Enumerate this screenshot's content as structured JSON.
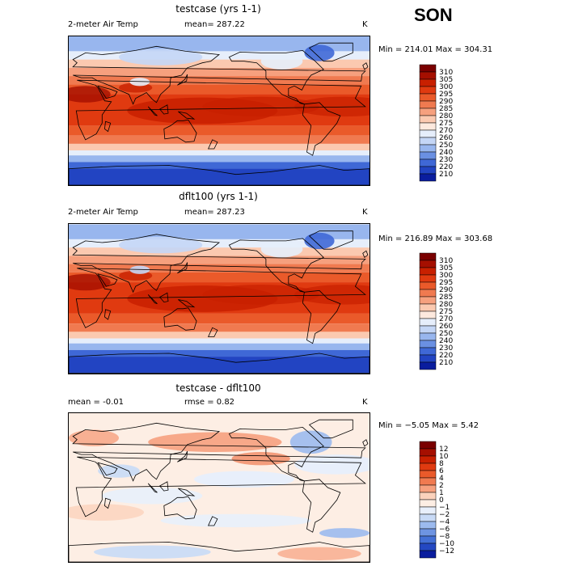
{
  "season": "SON",
  "panels": [
    {
      "id": "testcase",
      "title": "testcase (yrs 1-1)",
      "variable": "2-meter Air Temp",
      "stat_text": "mean= 287.22",
      "units": "K",
      "range_text": "Min = 214.01 Max = 304.31",
      "colorbar": {
        "levels": [
          "310",
          "305",
          "300",
          "295",
          "290",
          "285",
          "280",
          "275",
          "270",
          "260",
          "250",
          "240",
          "230",
          "220",
          "210"
        ],
        "colors": [
          "#7a0000",
          "#a50f00",
          "#c82000",
          "#e03a10",
          "#ea5a2a",
          "#f07a50",
          "#f6a07e",
          "#fbc9b0",
          "#fde9de",
          "#e6eefb",
          "#c4d6f6",
          "#98b6ee",
          "#6a90e2",
          "#3f68d6",
          "#2244c2",
          "#0a1d9e"
        ]
      }
    },
    {
      "id": "dflt100",
      "title": "dflt100 (yrs 1-1)",
      "variable": "2-meter Air Temp",
      "stat_text": "mean= 287.23",
      "units": "K",
      "range_text": "Min = 216.89 Max = 303.68",
      "colorbar": {
        "levels": [
          "310",
          "305",
          "300",
          "295",
          "290",
          "285",
          "280",
          "275",
          "270",
          "260",
          "250",
          "240",
          "230",
          "220",
          "210"
        ],
        "colors": [
          "#7a0000",
          "#a50f00",
          "#c82000",
          "#e03a10",
          "#ea5a2a",
          "#f07a50",
          "#f6a07e",
          "#fbc9b0",
          "#fde9de",
          "#e6eefb",
          "#c4d6f6",
          "#98b6ee",
          "#6a90e2",
          "#3f68d6",
          "#2244c2",
          "#0a1d9e"
        ]
      }
    },
    {
      "id": "difference",
      "title": "testcase - dflt100",
      "mean_text": "mean =   -0.01",
      "rmse_text": "rmse =    0.82",
      "units": "K",
      "range_text": "Min = −5.05 Max =   5.42",
      "colorbar": {
        "levels": [
          "12",
          "10",
          "8",
          "6",
          "4",
          "2",
          "1",
          "0",
          "−1",
          "−2",
          "−4",
          "−6",
          "−8",
          "−10",
          "−12"
        ],
        "colors": [
          "#7a0000",
          "#a50f00",
          "#c82000",
          "#e03a10",
          "#ea5a2a",
          "#f07a50",
          "#f6a07e",
          "#fbd2bc",
          "#fdeee4",
          "#e8effb",
          "#c8daf6",
          "#9cbaee",
          "#6e94e2",
          "#4470d6",
          "#2448c2",
          "#0a1d9e"
        ]
      }
    }
  ]
}
